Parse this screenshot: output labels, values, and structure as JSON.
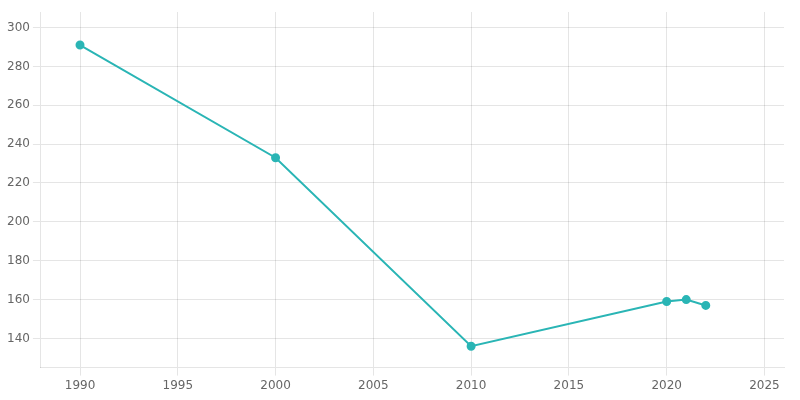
{
  "chart_data": {
    "type": "line",
    "x": [
      1990,
      2000,
      2010,
      2020,
      2021,
      2022
    ],
    "values": [
      291,
      233,
      136,
      159,
      160,
      157
    ],
    "color": "#2AB5B5",
    "marker": "circle",
    "xlim": [
      1988,
      2026
    ],
    "ylim": [
      125,
      308
    ],
    "xticks": [
      1990,
      1995,
      2000,
      2005,
      2010,
      2015,
      2020,
      2025
    ],
    "yticks": [
      140,
      160,
      180,
      200,
      220,
      240,
      260,
      280,
      300
    ],
    "grid": true
  }
}
